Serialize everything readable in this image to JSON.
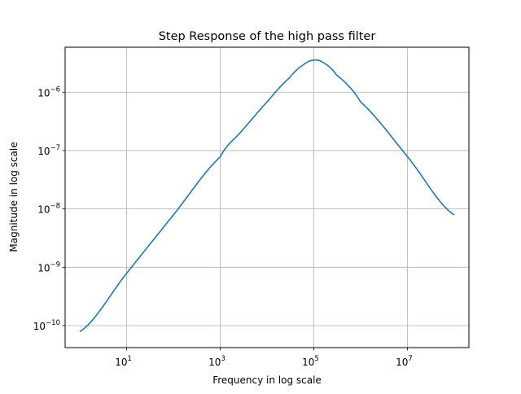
{
  "chart_data": {
    "type": "line",
    "title": "Step Response of the high pass filter",
    "xlabel": "Frequency in log scale",
    "ylabel": "Magnitude in log scale",
    "xscale": "log",
    "yscale": "log",
    "xlim": [
      0.4843,
      206490000
    ],
    "ylim": [
      4.2e-11,
      5.9e-06
    ],
    "grid": true,
    "line_color": "#1f77b4",
    "xticks": [
      {
        "value": 10,
        "base": "10",
        "exp": "1"
      },
      {
        "value": 1000,
        "base": "10",
        "exp": "3"
      },
      {
        "value": 100000,
        "base": "10",
        "exp": "5"
      },
      {
        "value": 10000000,
        "base": "10",
        "exp": "7"
      }
    ],
    "yticks": [
      {
        "value": 1e-10,
        "base": "10",
        "exp": "−10"
      },
      {
        "value": 1e-09,
        "base": "10",
        "exp": "−9"
      },
      {
        "value": 1e-08,
        "base": "10",
        "exp": "−8"
      },
      {
        "value": 1e-07,
        "base": "10",
        "exp": "−7"
      },
      {
        "value": 1e-06,
        "base": "10",
        "exp": "−6"
      }
    ],
    "series": [
      {
        "x": [
          1,
          10,
          100,
          1000,
          3000,
          10000,
          30000,
          60000,
          100000,
          160000,
          300000,
          1000000,
          10000000,
          100000000
        ],
        "y": [
          7.9e-11,
          7.9e-10,
          7.9e-09,
          7.8e-08,
          2.25e-07,
          6.8e-07,
          1.75e-06,
          2.95e-06,
          3.55e-06,
          3.2e-06,
          2e-06,
          6.8e-07,
          7.9e-08,
          7.9e-09
        ]
      }
    ]
  }
}
